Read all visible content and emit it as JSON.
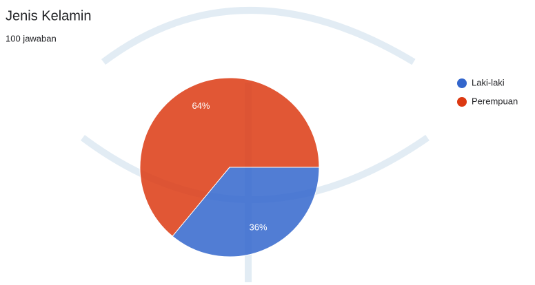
{
  "chart_data": {
    "type": "pie",
    "title": "Jenis Kelamin",
    "subtitle": "100 jawaban",
    "categories": [
      "Laki-laki",
      "Perempuan"
    ],
    "values": [
      36,
      64
    ],
    "value_labels": [
      "36%",
      "64%"
    ],
    "colors": [
      "#3366cc",
      "#dc3912"
    ],
    "legend_position": "right"
  }
}
